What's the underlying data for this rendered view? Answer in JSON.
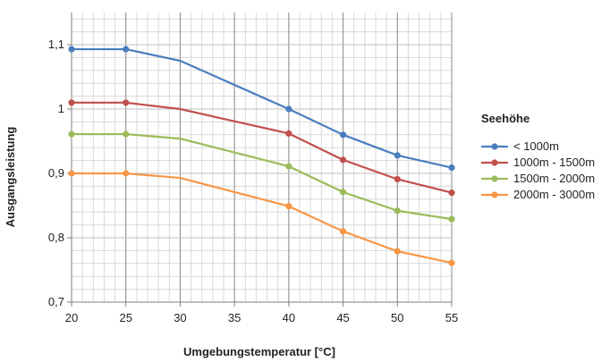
{
  "chart_data": {
    "type": "line",
    "title": "",
    "xlabel": "Umgebungstemperatur [°C]",
    "ylabel": "Ausgangsleistung",
    "xlim": [
      20,
      55
    ],
    "ylim": [
      0.7,
      1.15
    ],
    "x_ticks": [
      20,
      25,
      30,
      35,
      40,
      45,
      50,
      55
    ],
    "x_tick_labels": [
      "20",
      "25",
      "30",
      "35",
      "40",
      "45",
      "50",
      "55"
    ],
    "y_ticks": [
      0.7,
      0.8,
      0.9,
      1.0,
      1.1
    ],
    "y_tick_labels": [
      "0,7",
      "0,8",
      "0,9",
      "1",
      "1,1"
    ],
    "grid": true,
    "legend_title": "Seehöhe",
    "legend_position": "right",
    "x": [
      20,
      25,
      30,
      40,
      45,
      50,
      55
    ],
    "series": [
      {
        "name": "< 1000m",
        "color": "#4a7ebf",
        "values": [
          1.093,
          1.093,
          1.075,
          1.0,
          0.96,
          0.928,
          0.909
        ]
      },
      {
        "name": "1000m - 1500m",
        "color": "#c0504d",
        "values": [
          1.01,
          1.01,
          1.0,
          0.962,
          0.921,
          0.891,
          0.87
        ]
      },
      {
        "name": "1500m - 2000m",
        "color": "#9bbb59",
        "values": [
          0.961,
          0.961,
          0.954,
          0.911,
          0.871,
          0.842,
          0.829
        ]
      },
      {
        "name": "2000m - 3000m",
        "color": "#f79646",
        "values": [
          0.9,
          0.9,
          0.893,
          0.849,
          0.81,
          0.779,
          0.761
        ]
      }
    ]
  }
}
